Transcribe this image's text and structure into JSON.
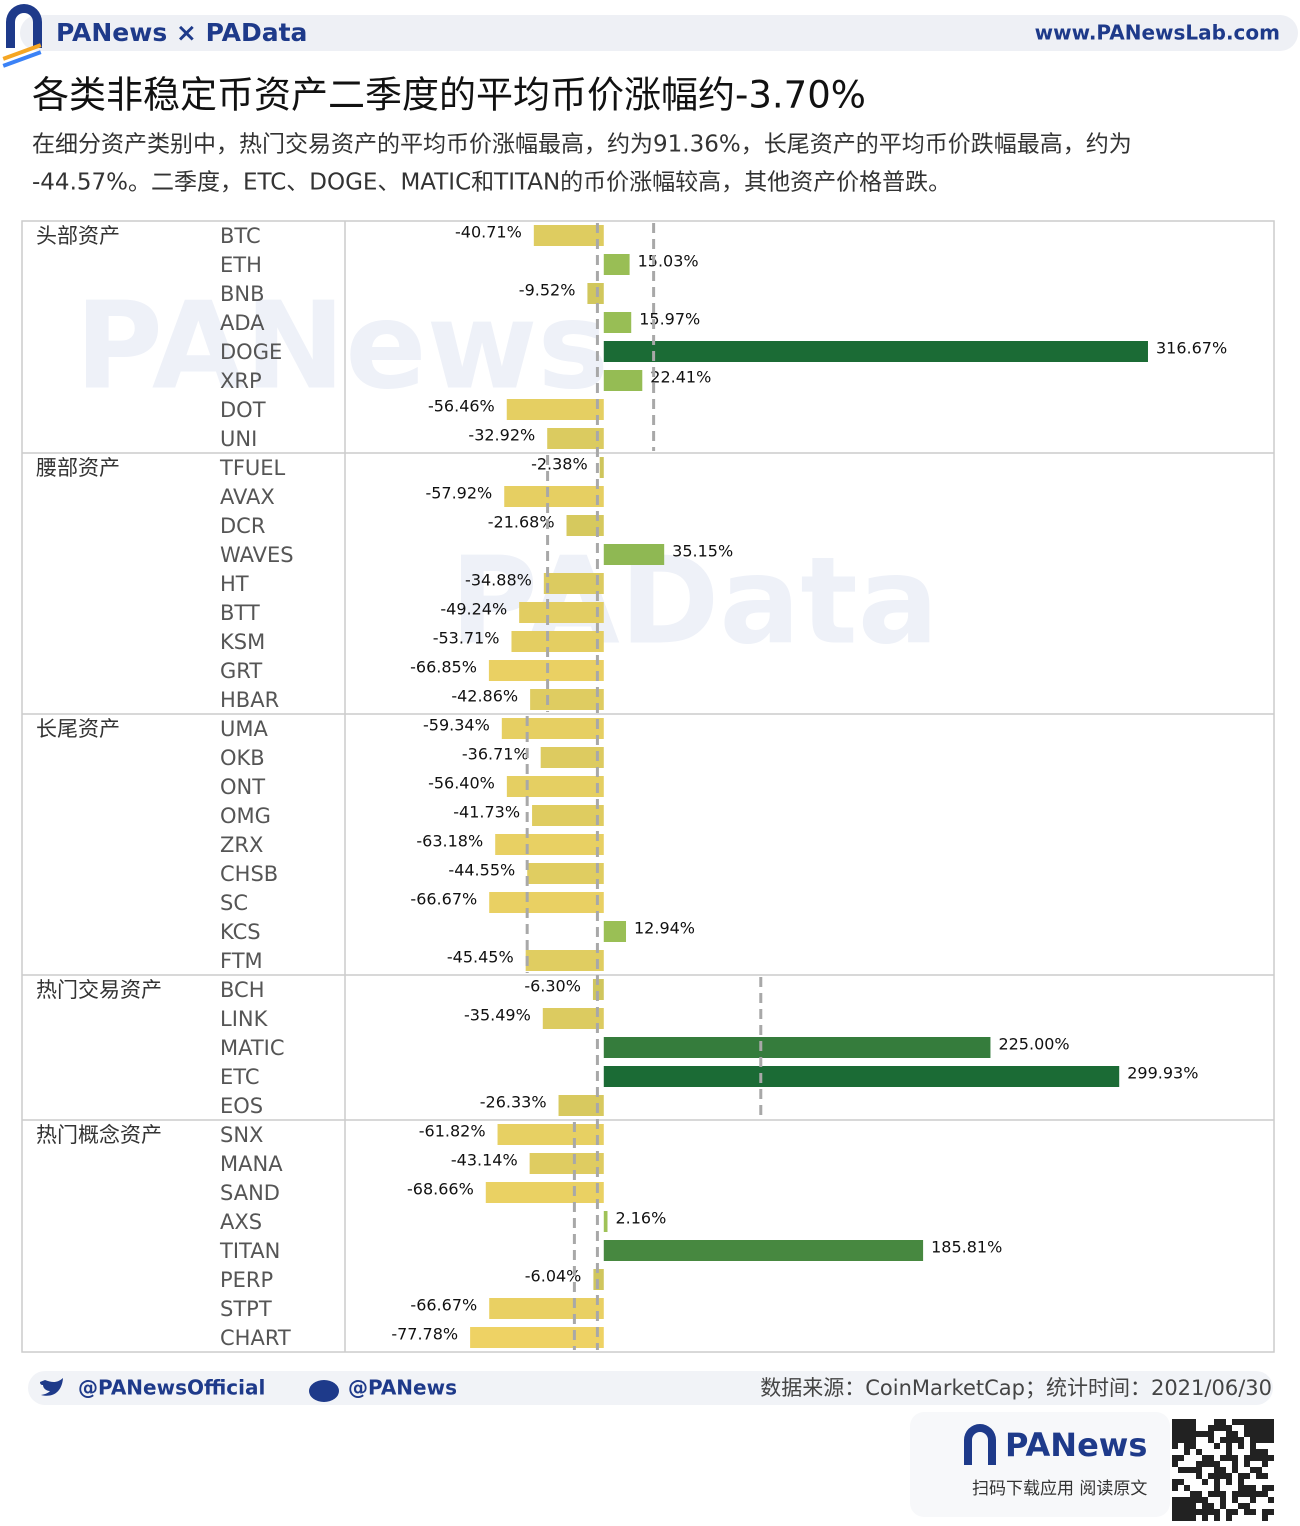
{
  "header": {
    "brand": "PANews × PAData",
    "url": "www.PANewsLab.com",
    "watermarks": [
      "PANews",
      "PAData"
    ]
  },
  "chart_data": {
    "type": "bar",
    "orientation": "horizontal",
    "title": "各类非稳定币资产二季度的平均币价涨幅约-3.70%",
    "subtitle": [
      "在细分资产类别中，热门交易资产的平均币价涨幅最高，约为91.36%，长尾资产的平均币价跌幅最高，约为",
      "-44.57%。二季度，ETC、DOGE、MATIC和TITAN的币价涨幅较高，其他资产价格普跌。"
    ],
    "xlim": [
      -150,
      390
    ],
    "overall_average": -3.7,
    "colors": {
      "negative": [
        "#cdc55c",
        "#f5d566"
      ],
      "positive": [
        "#a0c357",
        "#1b6b35"
      ],
      "average_line": "#a8a8a8"
    },
    "groups": [
      {
        "name": "头部资产",
        "average": 29,
        "categories": [
          "BTC",
          "ETH",
          "BNB",
          "ADA",
          "DOGE",
          "XRP",
          "DOT",
          "UNI"
        ],
        "values": [
          -40.71,
          15.03,
          -9.52,
          15.97,
          316.67,
          22.41,
          -56.46,
          -32.92
        ],
        "value_labels": [
          "-40.71%",
          "15.03%",
          "-9.52%",
          "15.97%",
          "316.67%",
          "22.41%",
          "-56.46%",
          "-32.92%"
        ]
      },
      {
        "name": "腰部资产",
        "average": -32.7,
        "categories": [
          "TFUEL",
          "AVAX",
          "DCR",
          "WAVES",
          "HT",
          "BTT",
          "KSM",
          "GRT",
          "HBAR"
        ],
        "values": [
          -2.38,
          -57.92,
          -21.68,
          35.15,
          -34.88,
          -49.24,
          -53.71,
          -66.85,
          -42.86
        ],
        "value_labels": [
          "-2.38%",
          "-57.92%",
          "-21.68%",
          "35.15%",
          "-34.88%",
          "-49.24%",
          "-53.71%",
          "-66.85%",
          "-42.86%"
        ]
      },
      {
        "name": "长尾资产",
        "average": -44.57,
        "categories": [
          "UMA",
          "OKB",
          "ONT",
          "OMG",
          "ZRX",
          "CHSB",
          "SC",
          "KCS",
          "FTM"
        ],
        "values": [
          -59.34,
          -36.71,
          -56.4,
          -41.73,
          -63.18,
          -44.55,
          -66.67,
          12.94,
          -45.45
        ],
        "value_labels": [
          "-59.34%",
          "-36.71%",
          "-56.40%",
          "-41.73%",
          "-63.18%",
          "-44.55%",
          "-66.67%",
          "12.94%",
          "-45.45%"
        ]
      },
      {
        "name": "热门交易资产",
        "average": 91.36,
        "categories": [
          "BCH",
          "LINK",
          "MATIC",
          "ETC",
          "EOS"
        ],
        "values": [
          -6.3,
          -35.49,
          225,
          299.93,
          -26.33
        ],
        "value_labels": [
          "-6.30%",
          "-35.49%",
          "225.00%",
          "299.93%",
          "-26.33%"
        ]
      },
      {
        "name": "热门概念资产",
        "average": -17.1,
        "categories": [
          "SNX",
          "MANA",
          "SAND",
          "AXS",
          "TITAN",
          "PERP",
          "STPT",
          "CHART"
        ],
        "values": [
          -61.82,
          -43.14,
          -68.66,
          2.16,
          185.81,
          -6.04,
          -66.67,
          -77.78
        ],
        "value_labels": [
          "-61.82%",
          "-43.14%",
          "-68.66%",
          "2.16%",
          "185.81%",
          "-6.04%",
          "-66.67%",
          "-77.78%"
        ]
      }
    ]
  },
  "footer": {
    "twitter": "@PANewsOfficial",
    "weibo": "@PANews",
    "source": "数据来源：CoinMarketCap；统计时间：2021/06/30",
    "app_brand": "PANews",
    "app_prompt": "扫码下载应用  阅读原文"
  }
}
